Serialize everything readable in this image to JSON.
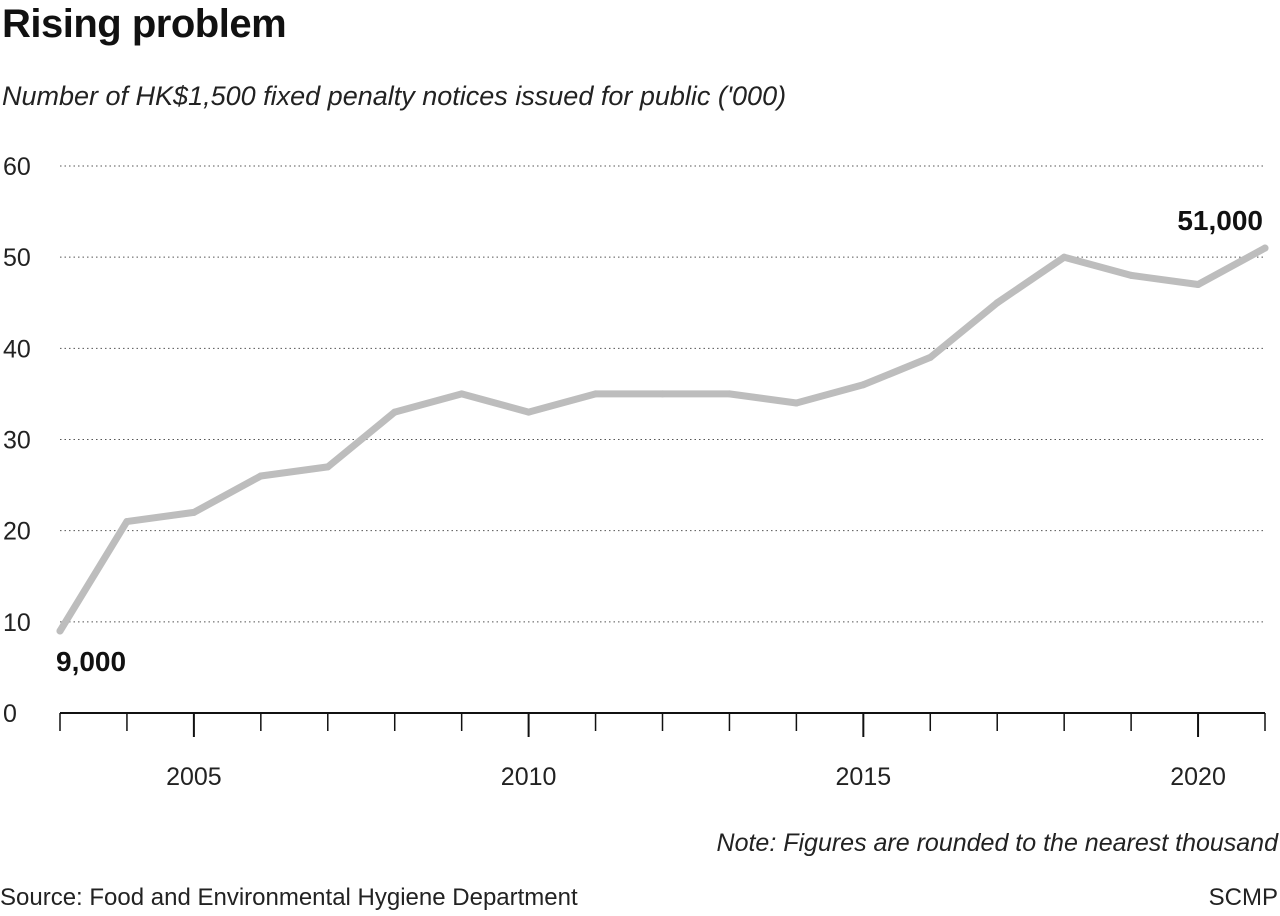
{
  "chart_data": {
    "type": "line",
    "title": "Rising problem",
    "subtitle": "Number of HK$1,500 fixed penalty notices issued for public ('000)",
    "xlabel": "",
    "ylabel": "",
    "xlim": [
      2003,
      2021
    ],
    "ylim": [
      0,
      60
    ],
    "yticks": [
      0,
      10,
      20,
      30,
      40,
      50,
      60
    ],
    "xticks_major": [
      2005,
      2010,
      2015,
      2020
    ],
    "grid": "horizontal-dotted",
    "series": [
      {
        "color": "#bdbdbd",
        "x": [
          2003,
          2004,
          2005,
          2006,
          2007,
          2008,
          2009,
          2010,
          2011,
          2012,
          2013,
          2014,
          2015,
          2016,
          2017,
          2018,
          2019,
          2020,
          2021
        ],
        "y": [
          9,
          21,
          22,
          26,
          27,
          33,
          35,
          33,
          35,
          35,
          35,
          34,
          36,
          39,
          45,
          50,
          48,
          47,
          51
        ]
      }
    ],
    "annotations": [
      {
        "text": "9,000",
        "x": 2003,
        "y": 9
      },
      {
        "text": "51,000",
        "x": 2021,
        "y": 51
      }
    ]
  },
  "note": "Note: Figures are rounded to the nearest thousand",
  "source": "Source: Food and Environmental Hygiene Department",
  "brand": "SCMP"
}
